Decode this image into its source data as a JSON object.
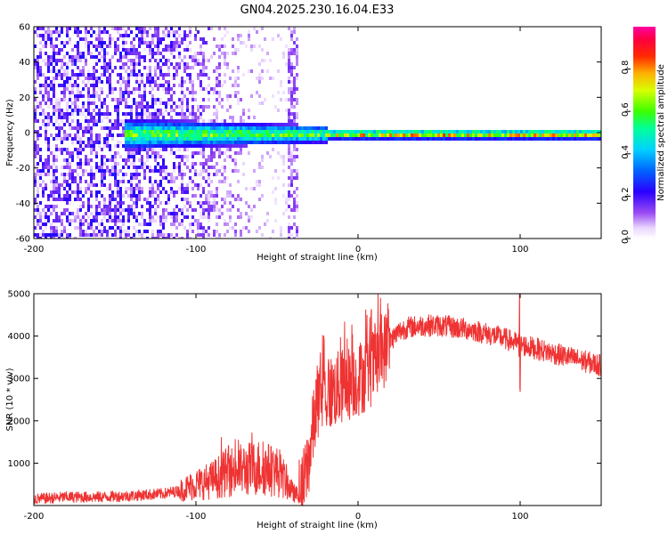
{
  "title": "GN04.2025.230.16.04.E33",
  "chart_data": [
    {
      "type": "heatmap",
      "title": "",
      "xlabel": "Height of straight line (km)",
      "ylabel": "Frequency (Hz)",
      "xlim": [
        -200,
        150
      ],
      "ylim": [
        -60,
        60
      ],
      "xticks": [
        -200,
        -100,
        0,
        100
      ],
      "yticks": [
        -60,
        -40,
        -20,
        0,
        20,
        40,
        60
      ],
      "xtick_labels": [
        "-200",
        "-100",
        "0",
        "100"
      ],
      "ytick_labels": [
        "-60",
        "-40",
        "-20",
        "0",
        "20",
        "40",
        "60"
      ],
      "colorbar": {
        "label": "Normalized spectral amplitude",
        "range": [
          0.0,
          1.0
        ],
        "ticks": [
          0.0,
          0.2,
          0.4,
          0.6,
          0.8
        ],
        "tick_labels": [
          "0.0",
          "0.2",
          "0.4",
          "0.6",
          "0.8"
        ],
        "colormap": "rainbow (white-violet-blue-cyan-green-yellow-red-magenta)"
      },
      "features": [
        {
          "description": "broadband noise",
          "x_range": [
            -200,
            -35
          ],
          "freq_range": [
            -60,
            60
          ],
          "amplitude": 0.1
        },
        {
          "description": "narrow line near 0 Hz",
          "x_range": [
            -145,
            150
          ],
          "freq_center": 0,
          "peak_amplitude": 0.8
        }
      ],
      "grid": false
    },
    {
      "type": "line",
      "title": "",
      "xlabel": "Height of straight line (km)",
      "ylabel": "SNR (10 * v/v)",
      "xlim": [
        -200,
        150
      ],
      "ylim": [
        0,
        5000
      ],
      "xticks": [
        -200,
        -100,
        0,
        100
      ],
      "yticks": [
        1000,
        2000,
        3000,
        4000,
        5000
      ],
      "xtick_labels": [
        "-200",
        "-100",
        "0",
        "100"
      ],
      "ytick_labels": [
        "1000",
        "2000",
        "3000",
        "4000",
        "5000"
      ],
      "color": "#ef3333",
      "grid": false,
      "series": [
        {
          "x": [
            -200,
            -180,
            -160,
            -140,
            -120,
            -110,
            -100,
            -90,
            -80,
            -70,
            -60,
            -50,
            -45,
            -40,
            -35,
            -30,
            -25,
            -20,
            -15,
            -10,
            -5,
            0,
            5,
            10,
            15,
            20,
            25,
            30,
            40,
            50,
            60,
            70,
            80,
            90,
            100,
            110,
            120,
            130,
            140,
            150
          ],
          "values": [
            150,
            200,
            200,
            230,
            280,
            350,
            500,
            600,
            800,
            850,
            900,
            800,
            600,
            300,
            200,
            1200,
            2500,
            2600,
            2700,
            2800,
            2900,
            3000,
            3100,
            3300,
            3600,
            3900,
            4100,
            4200,
            4250,
            4250,
            4200,
            4150,
            4050,
            3950,
            3800,
            3700,
            3600,
            3500,
            3400,
            3300
          ]
        }
      ]
    }
  ]
}
